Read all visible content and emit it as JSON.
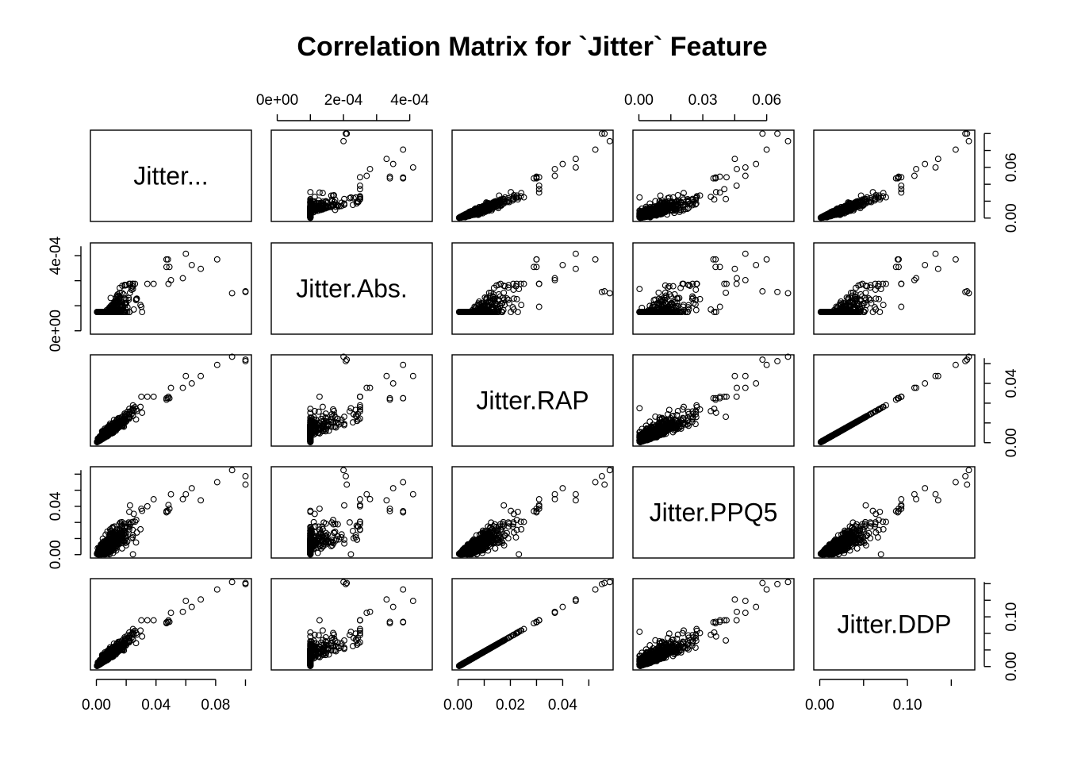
{
  "chart_data": {
    "type": "scatter",
    "title": "Correlation Matrix for `Jitter` Feature",
    "variables": [
      {
        "name": "Jitter...",
        "range": [
          0.0,
          0.1
        ],
        "ticks": [
          0.0,
          0.04,
          0.08
        ],
        "tick_labels": [
          "0.00",
          "0.04",
          "0.08"
        ]
      },
      {
        "name": "Jitter.Abs.",
        "range": [
          0.0,
          0.00045
        ],
        "ticks": [
          0.0,
          0.0002,
          0.0004
        ],
        "tick_labels": [
          "0e+00",
          "2e-04",
          "4e-04"
        ]
      },
      {
        "name": "Jitter.RAP",
        "range": [
          0.0,
          0.057
        ],
        "ticks": [
          0.0,
          0.02,
          0.04
        ],
        "tick_labels": [
          "0.00",
          "0.02",
          "0.04"
        ]
      },
      {
        "name": "Jitter.PPQ5",
        "range": [
          0.0,
          0.07
        ],
        "ticks": [
          0.0,
          0.03,
          0.06
        ],
        "tick_labels": [
          "0.00",
          "0.03",
          "0.06"
        ]
      },
      {
        "name": "Jitter.DDP",
        "range": [
          0.0,
          0.17
        ],
        "ticks": [
          0.0,
          0.1
        ],
        "tick_labels": [
          "0.00",
          "0.10"
        ]
      }
    ],
    "left_axis_ticks": {
      "Jitter.Abs.": {
        "ticks": [
          0.0,
          0.0004
        ],
        "tick_labels": [
          "0e+00",
          "4e-04"
        ]
      },
      "Jitter.PPQ5": {
        "ticks": [
          0.0,
          0.04
        ],
        "tick_labels": [
          "0.00",
          "0.04"
        ]
      }
    },
    "right_axis_ticks": {
      "Jitter...": {
        "ticks": [
          0.0,
          0.06
        ],
        "tick_labels": [
          "0.00",
          "0.06"
        ]
      },
      "Jitter.RAP": {
        "ticks": [
          0.0,
          0.04
        ],
        "tick_labels": [
          "0.00",
          "0.04"
        ]
      },
      "Jitter.DDP": {
        "ticks": [
          0.0,
          0.1
        ],
        "tick_labels": [
          "0.00",
          "0.10"
        ]
      }
    },
    "outliers": [
      [
        0.1,
        0.000207,
        0.055,
        0.065,
        0.166
      ],
      [
        0.1,
        0.00021,
        0.056,
        0.058,
        0.168
      ],
      [
        0.091,
        0.0002,
        0.058,
        0.07,
        0.17
      ],
      [
        0.081,
        0.00038,
        0.0525,
        0.06,
        0.155
      ],
      [
        0.07,
        0.00033,
        0.045,
        0.045,
        0.135
      ],
      [
        0.064,
        0.00035,
        0.04,
        0.055,
        0.12
      ],
      [
        0.06,
        0.00041,
        0.045,
        0.05,
        0.132
      ],
      [
        0.058,
        0.00028,
        0.037,
        0.046,
        0.11
      ],
      [
        0.05,
        0.00027,
        0.037,
        0.05,
        0.108
      ],
      [
        0.048,
        0.00038,
        0.03,
        0.036,
        0.09
      ],
      [
        0.047,
        0.00034,
        0.029,
        0.036,
        0.087
      ],
      [
        0.047,
        0.00038,
        0.03,
        0.035,
        0.089
      ],
      [
        0.049,
        0.00034,
        0.03,
        0.038,
        0.09
      ]
    ],
    "n_points": 1500,
    "grid": false
  }
}
